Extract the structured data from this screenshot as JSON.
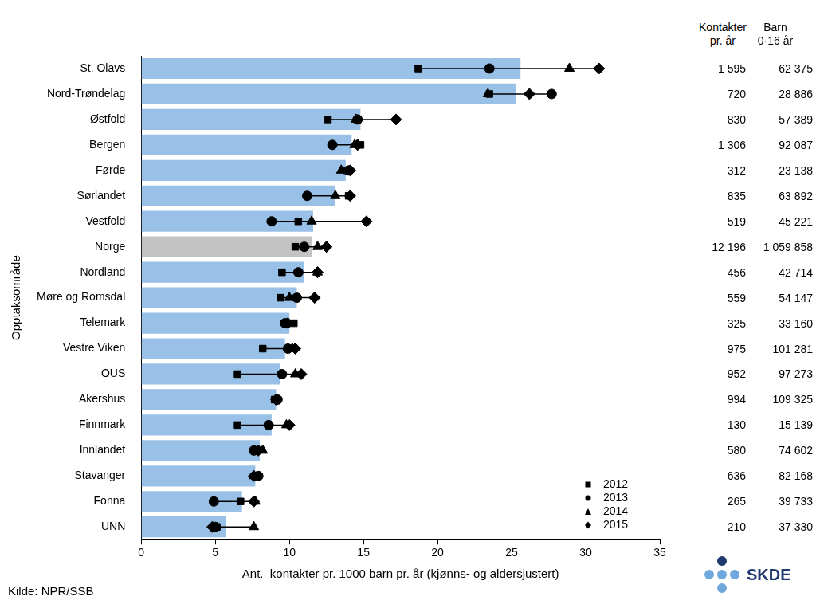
{
  "chart_data": {
    "type": "bar",
    "orientation": "horizontal",
    "ylabel": "Opptaksområde",
    "xlabel": "Ant.  kontakter pr. 1000 barn pr. år (kjønns- og aldersjustert)",
    "categories": [
      "St. Olavs",
      "Nord-Trøndelag",
      "Østfold",
      "Bergen",
      "Førde",
      "Sørlandet",
      "Vestfold",
      "Norge",
      "Nordland",
      "Møre og Romsdal",
      "Telemark",
      "Vestre Viken",
      "OUS",
      "Akershus",
      "Finnmark",
      "Innlandet",
      "Stavanger",
      "Fonna",
      "UNN"
    ],
    "values": [
      25.6,
      25.3,
      14.8,
      14.2,
      13.8,
      13.1,
      11.6,
      11.5,
      11.0,
      10.5,
      10.0,
      9.7,
      9.4,
      9.1,
      8.8,
      8.0,
      7.7,
      6.8,
      5.7
    ],
    "colors": [
      "#99c1e8",
      "#99c1e8",
      "#99c1e8",
      "#99c1e8",
      "#99c1e8",
      "#99c1e8",
      "#99c1e8",
      "#c3c3c3",
      "#99c1e8",
      "#99c1e8",
      "#99c1e8",
      "#99c1e8",
      "#99c1e8",
      "#99c1e8",
      "#99c1e8",
      "#99c1e8",
      "#99c1e8",
      "#99c1e8",
      "#99c1e8"
    ],
    "series": [
      {
        "name": "2012",
        "type": "scatter",
        "marker": "square",
        "color": "#000000",
        "values": [
          18.7,
          23.5,
          12.6,
          14.8,
          13.9,
          14.0,
          10.6,
          10.4,
          9.5,
          9.4,
          10.3,
          8.2,
          6.5,
          9.0,
          6.5,
          7.7,
          7.8,
          6.7,
          5.1
        ]
      },
      {
        "name": "2013",
        "type": "scatter",
        "marker": "circle",
        "color": "#000000",
        "values": [
          23.5,
          27.7,
          14.6,
          12.9,
          14.0,
          11.2,
          8.8,
          11.0,
          10.6,
          10.5,
          9.7,
          9.9,
          9.5,
          9.2,
          8.6,
          7.6,
          7.9,
          4.9,
          5.0
        ]
      },
      {
        "name": "2014",
        "type": "scatter",
        "marker": "triangle",
        "color": "#000000",
        "values": [
          28.9,
          23.4,
          14.5,
          14.4,
          13.5,
          13.1,
          11.5,
          11.9,
          11.9,
          10.0,
          9.9,
          10.2,
          10.4,
          9.1,
          9.8,
          8.2,
          7.6,
          7.7,
          7.6
        ]
      },
      {
        "name": "2015",
        "type": "scatter",
        "marker": "diamond",
        "color": "#000000",
        "values": [
          30.9,
          26.2,
          17.2,
          14.6,
          14.1,
          14.1,
          15.2,
          12.5,
          11.9,
          11.7,
          9.9,
          10.4,
          10.8,
          9.1,
          10.0,
          7.9,
          7.6,
          7.6,
          4.8
        ]
      }
    ],
    "xlim": [
      0,
      35
    ],
    "xticks": [
      0,
      5,
      10,
      15,
      20,
      25,
      30,
      35
    ],
    "grid": false,
    "legend": "lower right"
  },
  "table": {
    "headers": [
      [
        "Kontakter",
        "pr. år"
      ],
      [
        "Barn",
        "0-16 år"
      ]
    ],
    "rows": [
      [
        "1 595",
        "62 375"
      ],
      [
        "720",
        "28 886"
      ],
      [
        "830",
        "57 389"
      ],
      [
        "1 306",
        "92 087"
      ],
      [
        "312",
        "23 138"
      ],
      [
        "835",
        "63 892"
      ],
      [
        "519",
        "45 221"
      ],
      [
        "12 196",
        "1 059 858"
      ],
      [
        "456",
        "42 714"
      ],
      [
        "559",
        "54 147"
      ],
      [
        "325",
        "33 160"
      ],
      [
        "975",
        "101 281"
      ],
      [
        "952",
        "97 273"
      ],
      [
        "994",
        "109 325"
      ],
      [
        "130",
        "15 139"
      ],
      [
        "580",
        "74 602"
      ],
      [
        "636",
        "82 168"
      ],
      [
        "265",
        "39 733"
      ],
      [
        "210",
        "37 330"
      ]
    ]
  },
  "source": "Kilde: NPR/SSB",
  "logo": "SKDE"
}
